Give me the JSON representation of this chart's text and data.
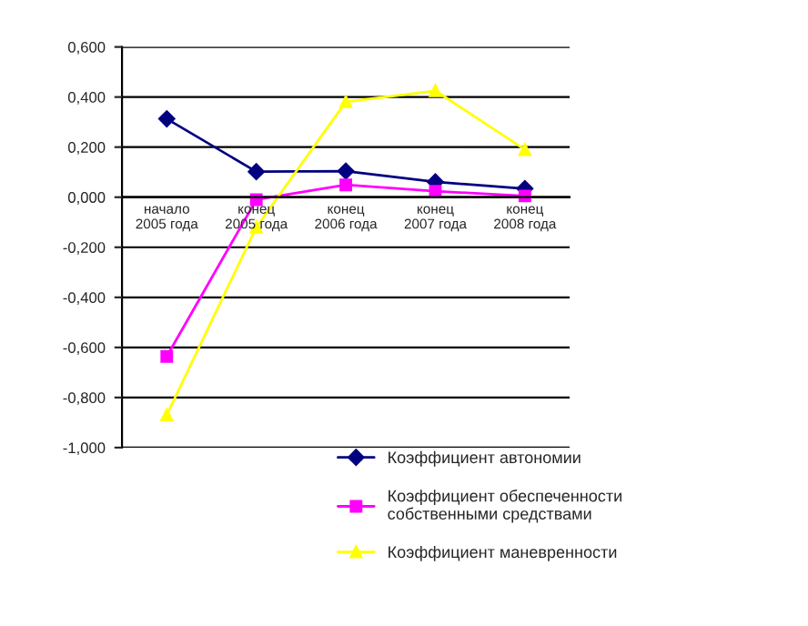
{
  "chart_data": {
    "type": "line",
    "categories": [
      "начало\n2005 года",
      "конец\n2005 года",
      "конец\n2006 года",
      "конец\n2007 года",
      "конец\n2008 года"
    ],
    "series": [
      {
        "name": "Коэффициент автономии",
        "color": "#000080",
        "marker": "diamond",
        "values": [
          0.313,
          0.102,
          0.104,
          0.061,
          0.034
        ]
      },
      {
        "name": "Коэффициент обеспеченности\nсобственными средствами",
        "color": "#ff00ff",
        "marker": "square",
        "values": [
          -0.636,
          -0.01,
          0.049,
          0.024,
          0.005
        ]
      },
      {
        "name": "Коэффициент маневренности",
        "color": "#ffff00",
        "marker": "triangle",
        "values": [
          -0.87,
          -0.12,
          0.381,
          0.425,
          0.19
        ]
      }
    ],
    "ylim": [
      -1.0,
      0.6
    ],
    "yticks": [
      {
        "value": -1.0,
        "label": "-1,000"
      },
      {
        "value": -0.8,
        "label": "-0,800"
      },
      {
        "value": -0.6,
        "label": "-0,600"
      },
      {
        "value": -0.4,
        "label": "-0,400"
      },
      {
        "value": -0.2,
        "label": "-0,200"
      },
      {
        "value": 0,
        "label": "0,000"
      },
      {
        "value": 0.2,
        "label": "0,200"
      },
      {
        "value": 0.4,
        "label": "0,400"
      },
      {
        "value": 0.6,
        "label": "0,600"
      }
    ],
    "grid": "y",
    "legend": "bottom right",
    "line_style": "solid"
  }
}
